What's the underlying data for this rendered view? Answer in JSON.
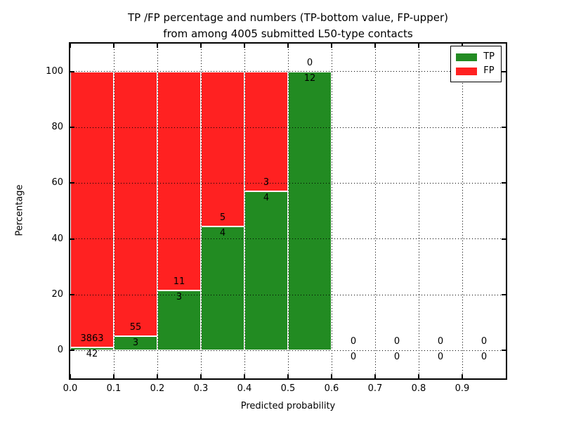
{
  "chart_data": {
    "type": "bar",
    "stacked": true,
    "title": "TP /FP percentage and numbers (TP-bottom value, FP-upper)\nfrom among 4005 submitted L50-type contacts",
    "title_line1": "TP /FP percentage and numbers (TP-bottom value, FP-upper)",
    "title_line2": "from among 4005 submitted L50-type contacts",
    "xlabel": "Predicted probability",
    "ylabel": "Percentage",
    "xlim": [
      0.0,
      1.0
    ],
    "ylim": [
      -10,
      110
    ],
    "xticks": [
      0.0,
      0.1,
      0.2,
      0.3,
      0.4,
      0.5,
      0.6,
      0.7,
      0.8,
      0.9
    ],
    "yticks": [
      0,
      20,
      40,
      60,
      80,
      100
    ],
    "grid": {
      "style": "dotted",
      "color": "#000000"
    },
    "total_submitted": 4005,
    "legend": {
      "position": "upper-right",
      "entries": [
        {
          "label": "TP",
          "color": "#228B22"
        },
        {
          "label": "FP",
          "color": "#FF2121"
        }
      ]
    },
    "bins": [
      {
        "range": [
          0.0,
          0.1
        ],
        "tp_count": 42,
        "fp_count": 3863,
        "tp_pct": 1.08,
        "fp_pct": 98.92
      },
      {
        "range": [
          0.1,
          0.2
        ],
        "tp_count": 3,
        "fp_count": 55,
        "tp_pct": 5.17,
        "fp_pct": 94.83
      },
      {
        "range": [
          0.2,
          0.3
        ],
        "tp_count": 3,
        "fp_count": 11,
        "tp_pct": 21.43,
        "fp_pct": 78.57
      },
      {
        "range": [
          0.3,
          0.4
        ],
        "tp_count": 4,
        "fp_count": 5,
        "tp_pct": 44.44,
        "fp_pct": 55.56
      },
      {
        "range": [
          0.4,
          0.5
        ],
        "tp_count": 4,
        "fp_count": 3,
        "tp_pct": 57.14,
        "fp_pct": 42.86
      },
      {
        "range": [
          0.5,
          0.6
        ],
        "tp_count": 12,
        "fp_count": 0,
        "tp_pct": 100.0,
        "fp_pct": 0.0
      },
      {
        "range": [
          0.6,
          0.7
        ],
        "tp_count": 0,
        "fp_count": 0,
        "tp_pct": 0.0,
        "fp_pct": 0.0
      },
      {
        "range": [
          0.7,
          0.8
        ],
        "tp_count": 0,
        "fp_count": 0,
        "tp_pct": 0.0,
        "fp_pct": 0.0
      },
      {
        "range": [
          0.8,
          0.9
        ],
        "tp_count": 0,
        "fp_count": 0,
        "tp_pct": 0.0,
        "fp_pct": 0.0
      },
      {
        "range": [
          0.9,
          1.0
        ],
        "tp_count": 0,
        "fp_count": 0,
        "tp_pct": 0.0,
        "fp_pct": 0.0
      }
    ]
  },
  "colors": {
    "tp_green": "#228B22",
    "fp_red": "#FF2121",
    "axis": "#000000",
    "background": "#FFFFFF"
  }
}
